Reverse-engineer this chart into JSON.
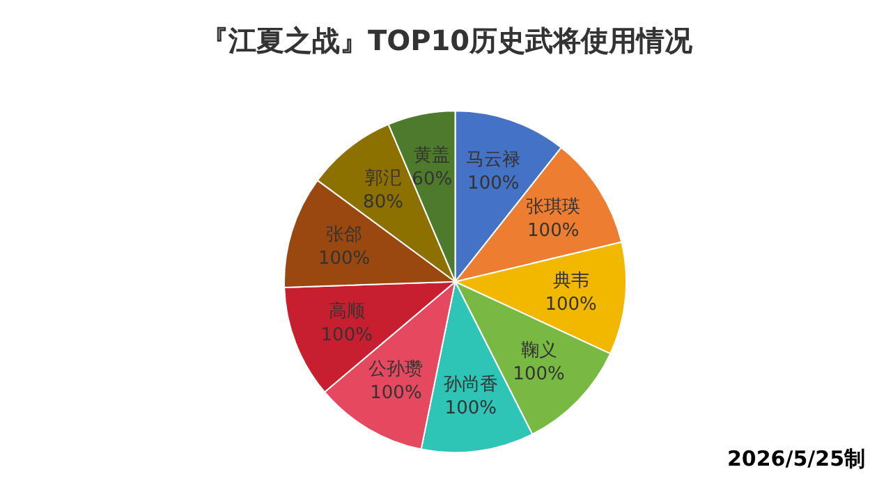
{
  "chart_data": {
    "type": "pie",
    "title": "『江夏之战』TOP10历史武将使用情况",
    "categories": [
      "马云禄",
      "张琪瑛",
      "典韦",
      "鞠义",
      "孙尚香",
      "公孙瓒",
      "高顺",
      "张郃",
      "郭汜",
      "黄盖"
    ],
    "values": [
      100,
      100,
      100,
      100,
      100,
      100,
      100,
      100,
      80,
      60
    ],
    "value_labels": [
      "100%",
      "100%",
      "100%",
      "100%",
      "100%",
      "100%",
      "100%",
      "100%",
      "80%",
      "60%"
    ],
    "colors": [
      "#4472c4",
      "#ed7d31",
      "#f2b800",
      "#78b943",
      "#2ec4b6",
      "#e5495f",
      "#c81f30",
      "#9a4710",
      "#8c7000",
      "#4e7a2c"
    ],
    "annotations": [
      "2026/5/25制"
    ]
  }
}
